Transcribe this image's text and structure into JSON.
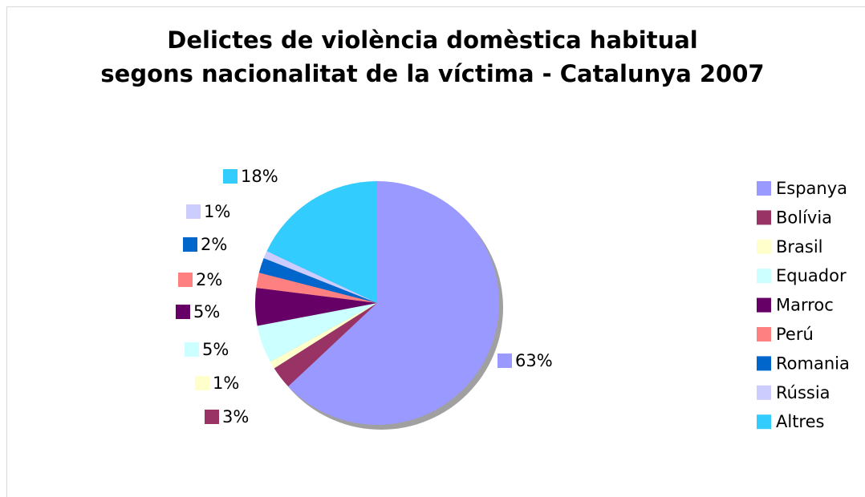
{
  "chart_data": {
    "type": "pie",
    "title": [
      "Delictes de violència domèstica habitual",
      "segons nacionalitat de la víctima -  Catalunya 2007"
    ],
    "categories": [
      "Espanya",
      "Bolívia",
      "Brasil",
      "Equador",
      "Marroc",
      "Perú",
      "Romania",
      "Rússia",
      "Altres"
    ],
    "values": [
      63,
      3,
      1,
      5,
      5,
      2,
      2,
      1,
      18
    ],
    "value_labels": [
      "63%",
      "3%",
      "1%",
      "5%",
      "5%",
      "2%",
      "2%",
      "1%",
      "18%"
    ],
    "colors": [
      "#9999ff",
      "#993366",
      "#ffffcc",
      "#ccffff",
      "#660066",
      "#ff8080",
      "#0066cc",
      "#ccccff",
      "#33ccff"
    ],
    "legend": "right"
  }
}
